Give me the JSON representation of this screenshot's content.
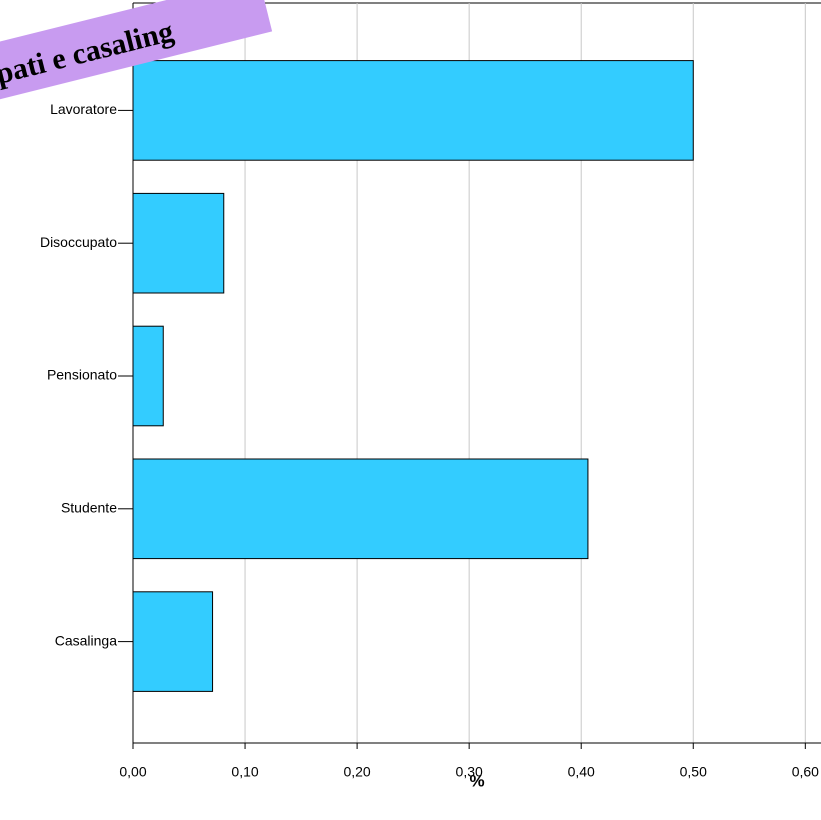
{
  "chart_data": {
    "type": "bar",
    "orientation": "horizontal",
    "annotation": "pati e casaling",
    "x_label": "%",
    "categories": [
      "Lavoratore",
      "Disoccupato",
      "Pensionato",
      "Studente",
      "Casalinga"
    ],
    "values": [
      0.5,
      0.081,
      0.027,
      0.406,
      0.071
    ],
    "color": "#33ccff",
    "xlim": [
      0,
      0.614
    ],
    "xticks": [
      {
        "value": 0,
        "label": "0,00"
      },
      {
        "value": 0.1,
        "label": "0,10"
      },
      {
        "value": 0.2,
        "label": "0,20"
      },
      {
        "value": 0.3,
        "label": "0,30"
      },
      {
        "value": 0.4,
        "label": "0,40"
      },
      {
        "value": 0.5,
        "label": "0,50"
      },
      {
        "value": 0.6,
        "label": "0,60"
      }
    ],
    "grid": true
  }
}
